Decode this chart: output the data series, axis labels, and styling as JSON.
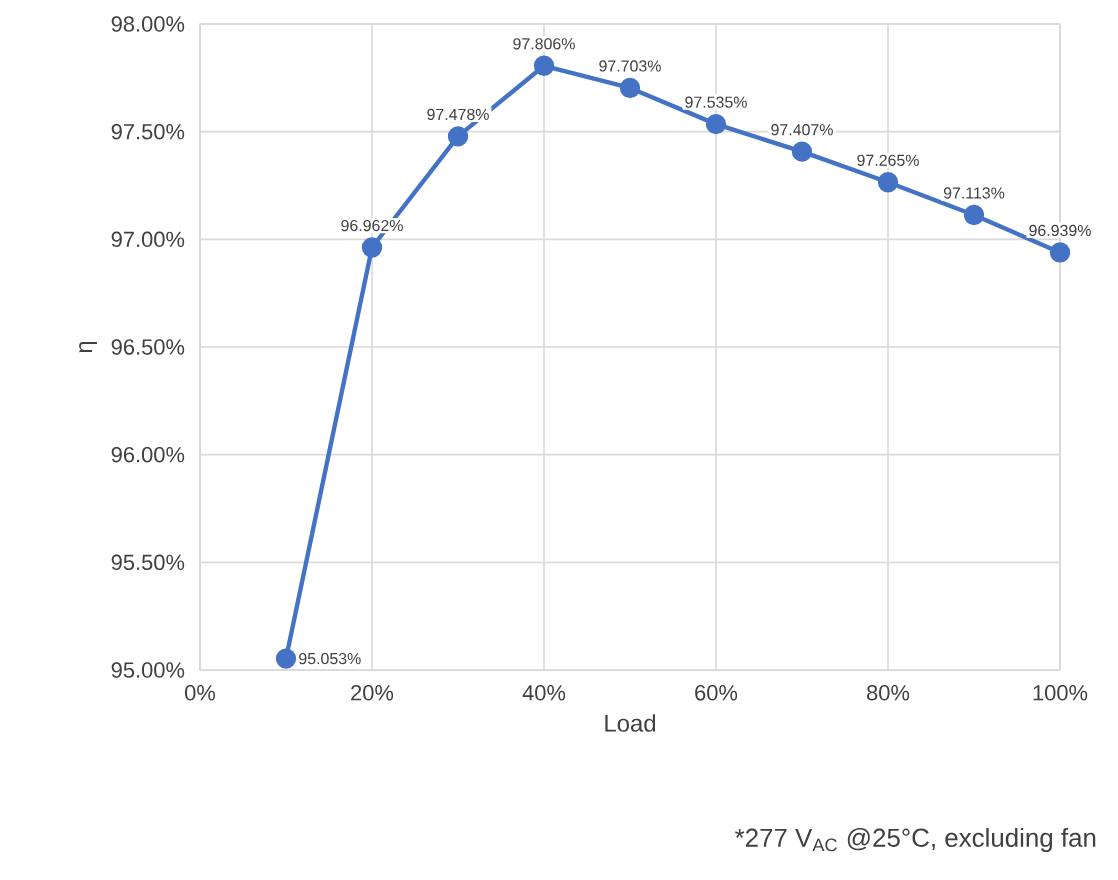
{
  "chart_data": {
    "type": "line",
    "xlabel": "Load",
    "ylabel": "η",
    "x": [
      10,
      20,
      30,
      40,
      50,
      60,
      70,
      80,
      90,
      100
    ],
    "values": [
      95.053,
      96.962,
      97.478,
      97.806,
      97.703,
      97.535,
      97.407,
      97.265,
      97.113,
      96.939
    ],
    "value_labels": [
      "95.053%",
      "96.962%",
      "97.478%",
      "97.806%",
      "97.703%",
      "97.535%",
      "97.407%",
      "97.265%",
      "97.113%",
      "96.939%"
    ],
    "color": "#4472c4",
    "marker": "circle",
    "line_style": "solid",
    "grid": true,
    "xlim": [
      0,
      100
    ],
    "xticks": [
      {
        "value": 0,
        "label": "0%"
      },
      {
        "value": 20,
        "label": "20%"
      },
      {
        "value": 40,
        "label": "40%"
      },
      {
        "value": 60,
        "label": "60%"
      },
      {
        "value": 80,
        "label": "80%"
      },
      {
        "value": 100,
        "label": "100%"
      }
    ],
    "ylim": [
      95,
      98
    ],
    "yticks": [
      {
        "value": 95,
        "label": "95.00%"
      },
      {
        "value": 95.5,
        "label": "95.50%"
      },
      {
        "value": 96,
        "label": "96.00%"
      },
      {
        "value": 96.5,
        "label": "96.50%"
      },
      {
        "value": 97,
        "label": "97.00%"
      },
      {
        "value": 97.5,
        "label": "97.50%"
      },
      {
        "value": 98,
        "label": "98.00%"
      }
    ],
    "annotations": [
      "*277 V$_{AC}$ @25°C, excluding fan"
    ]
  }
}
